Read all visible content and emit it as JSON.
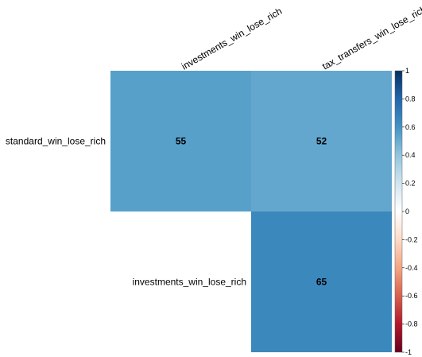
{
  "chart_data": {
    "type": "heatmap",
    "rows": [
      "standard_win_lose_rich",
      "investments_win_lose_rich"
    ],
    "columns": [
      "investments_win_lose_rich",
      "tax_transfers_win_lose_rich"
    ],
    "cells": [
      {
        "row": 0,
        "col": 0,
        "value": 55,
        "label": "55"
      },
      {
        "row": 0,
        "col": 1,
        "value": 52,
        "label": "52"
      },
      {
        "row": 1,
        "col": 1,
        "value": 65,
        "label": "65"
      }
    ],
    "colorbar": {
      "range": [
        -1,
        1
      ],
      "ticks": [
        {
          "value": 1,
          "label": "1"
        },
        {
          "value": 0.8,
          "label": "0.8"
        },
        {
          "value": 0.6,
          "label": "0.6"
        },
        {
          "value": 0.4,
          "label": "0.4"
        },
        {
          "value": 0.2,
          "label": "0.2"
        },
        {
          "value": 0,
          "label": "0"
        },
        {
          "value": -0.2,
          "label": "-0.2"
        },
        {
          "value": -0.4,
          "label": "-0.4"
        },
        {
          "value": -0.6,
          "label": "-0.6"
        },
        {
          "value": -0.8,
          "label": "-0.8"
        },
        {
          "value": -1,
          "label": "-1"
        }
      ],
      "palette": [
        "#67001F",
        "#B2182B",
        "#D6604D",
        "#F4A582",
        "#FDDBC7",
        "#FFFFFF",
        "#D1E5F0",
        "#92C5DE",
        "#4393C3",
        "#2166AC",
        "#053061"
      ]
    }
  }
}
